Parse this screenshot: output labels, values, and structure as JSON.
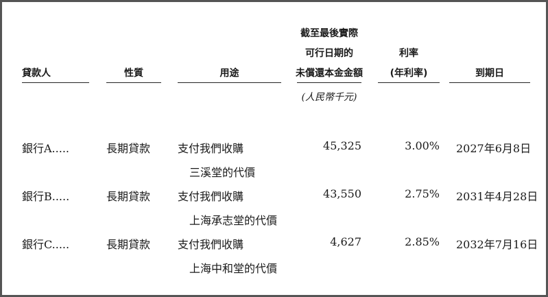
{
  "headers": {
    "lender": "貸款人",
    "nature": "性質",
    "purpose": "用途",
    "amount_lines": [
      "截至最後實際",
      "可行日期的",
      "未償還本金金額"
    ],
    "rate_lines": [
      "利率",
      "(年利率)"
    ],
    "maturity": "到期日",
    "amount_unit": "(人民幣千元)"
  },
  "rows": [
    {
      "lender": "銀行A.....",
      "nature": "長期貸款",
      "purpose_1": "支付我們收購",
      "purpose_2": "三溪堂的代價",
      "amount": "45,325",
      "rate": "3.00%",
      "maturity": "2027年6月8日"
    },
    {
      "lender": "銀行B.....",
      "nature": "長期貸款",
      "purpose_1": "支付我們收購",
      "purpose_2": "上海承志堂的代價",
      "amount": "43,550",
      "rate": "2.75%",
      "maturity": "2031年4月28日"
    },
    {
      "lender": "銀行C.....",
      "nature": "長期貸款",
      "purpose_1": "支付我們收購",
      "purpose_2": "上海中和堂的代價",
      "amount": "4,627",
      "rate": "2.85%",
      "maturity": "2032年7月16日"
    }
  ]
}
